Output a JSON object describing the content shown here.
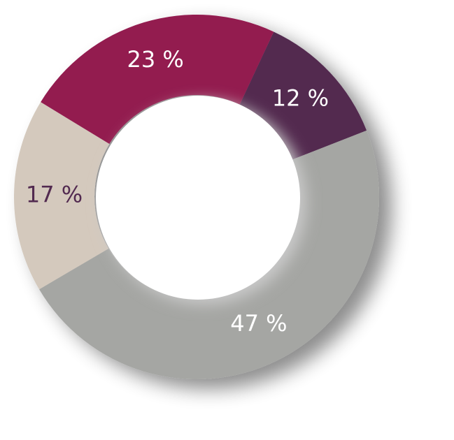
{
  "chart_data": {
    "type": "donut",
    "categories": [
      null,
      null,
      null,
      null
    ],
    "values": [
      12,
      47,
      17,
      23
    ],
    "value_labels": [
      "12 %",
      "47 %",
      "17 %",
      "23 %"
    ],
    "colors": [
      "#522a50",
      "#a5a6a3",
      "#d4c9bd",
      "#931a50"
    ]
  }
}
